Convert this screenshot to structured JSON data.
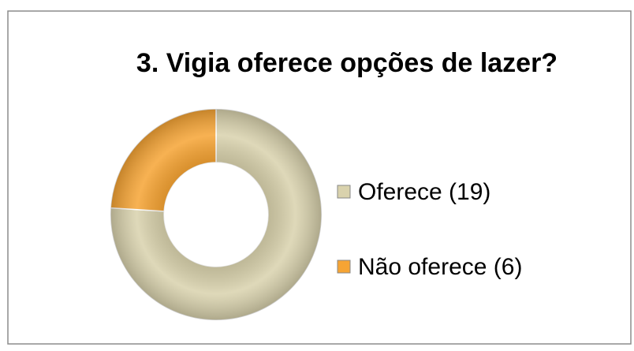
{
  "chart_data": {
    "type": "doughnut",
    "title": "3. Vigia oferece opções de lazer?",
    "categories": [
      "Oferece (19)",
      "Não oferece (6)"
    ],
    "values": [
      19,
      6
    ],
    "colors": [
      "#d9d2ad",
      "#f6a434"
    ],
    "legend": "right"
  }
}
